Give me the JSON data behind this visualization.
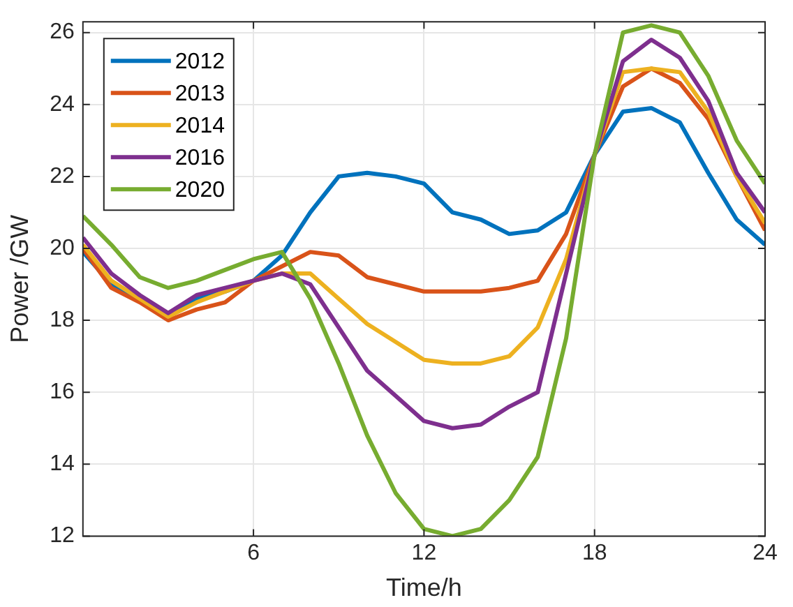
{
  "chart_data": {
    "type": "line",
    "xlabel": "Time/h",
    "ylabel": "Power /GW",
    "x": [
      0,
      1,
      2,
      3,
      4,
      5,
      6,
      7,
      8,
      9,
      10,
      11,
      12,
      13,
      14,
      15,
      16,
      17,
      18,
      19,
      20,
      21,
      22,
      23,
      24
    ],
    "series": [
      {
        "name": "2012",
        "color": "#0072bd",
        "values": [
          19.9,
          19.0,
          18.6,
          18.1,
          18.6,
          18.8,
          19.1,
          19.8,
          21.0,
          22.0,
          22.1,
          22.0,
          21.8,
          21.0,
          20.8,
          20.4,
          20.5,
          21.0,
          22.6,
          23.8,
          23.9,
          23.5,
          22.1,
          20.8,
          20.1
        ]
      },
      {
        "name": "2013",
        "color": "#d95319",
        "values": [
          20.0,
          18.9,
          18.5,
          18.0,
          18.3,
          18.5,
          19.1,
          19.5,
          19.9,
          19.8,
          19.2,
          19.0,
          18.8,
          18.8,
          18.8,
          18.9,
          19.1,
          20.4,
          22.6,
          24.5,
          25.0,
          24.6,
          23.6,
          22.0,
          20.5
        ]
      },
      {
        "name": "2014",
        "color": "#edb120",
        "values": [
          20.1,
          19.1,
          18.6,
          18.1,
          18.5,
          18.8,
          19.1,
          19.3,
          19.3,
          18.6,
          17.9,
          17.4,
          16.9,
          16.8,
          16.8,
          17.0,
          17.8,
          19.7,
          22.6,
          24.9,
          25.0,
          24.9,
          23.8,
          22.0,
          20.7
        ]
      },
      {
        "name": "2016",
        "color": "#7e2f8e",
        "values": [
          20.3,
          19.3,
          18.7,
          18.2,
          18.7,
          18.9,
          19.1,
          19.3,
          19.0,
          17.8,
          16.6,
          15.9,
          15.2,
          15.0,
          15.1,
          15.6,
          16.0,
          19.3,
          22.6,
          25.2,
          25.8,
          25.3,
          24.1,
          22.1,
          21.0
        ]
      },
      {
        "name": "2020",
        "color": "#77ac30",
        "values": [
          20.9,
          20.1,
          19.2,
          18.9,
          19.1,
          19.4,
          19.7,
          19.9,
          18.6,
          16.8,
          14.8,
          13.2,
          12.2,
          12.0,
          12.2,
          13.0,
          14.2,
          17.5,
          22.6,
          26.0,
          26.2,
          26.0,
          24.8,
          23.0,
          21.8
        ]
      }
    ],
    "xlim": [
      0,
      24
    ],
    "xticks": [
      6,
      12,
      18,
      24
    ],
    "ylim": [
      12,
      26.3
    ],
    "yticks": [
      12,
      14,
      16,
      18,
      20,
      22,
      24,
      26
    ],
    "grid": true,
    "legend": "top left",
    "marker": "none",
    "line_style": "solid"
  }
}
